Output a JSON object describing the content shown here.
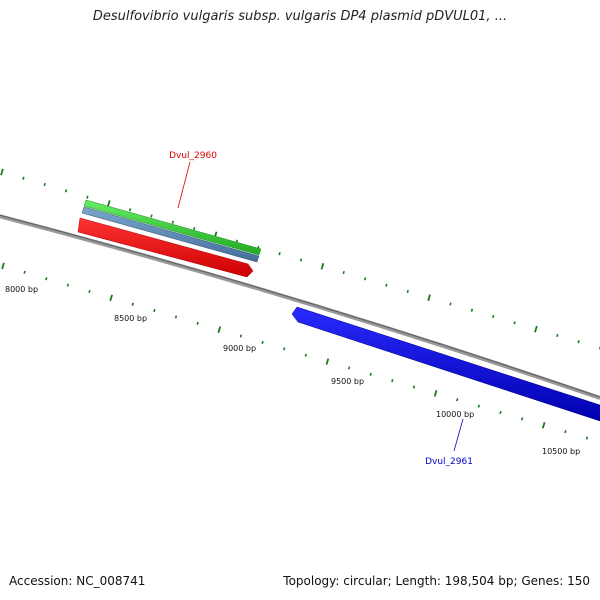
{
  "title": "Desulfovibrio vulgaris subsp. vulgaris DP4 plasmid pDVUL01, ...",
  "footer": {
    "accession": "Accession: NC_008741",
    "summary": "Topology: circular; Length: 198,504 bp; Genes: 150"
  },
  "ruler": {
    "labels": [
      "8000 bp",
      "8500 bp",
      "9000 bp",
      "9500 bp",
      "10000 bp",
      "10500 bp"
    ]
  },
  "genes": [
    {
      "name": "Dvul_2960",
      "color": "#e00000",
      "strand": "forward"
    },
    {
      "name": "Dvul_2961",
      "color": "#0000cc",
      "strand": "reverse"
    }
  ],
  "colors": {
    "backbone": "#888888",
    "tick": "#1a7a1a",
    "cog_green": "#33cc33",
    "cog_blue": "#5588bb",
    "gene_red": "#ff0000",
    "gene_blue": "#0000ee"
  }
}
